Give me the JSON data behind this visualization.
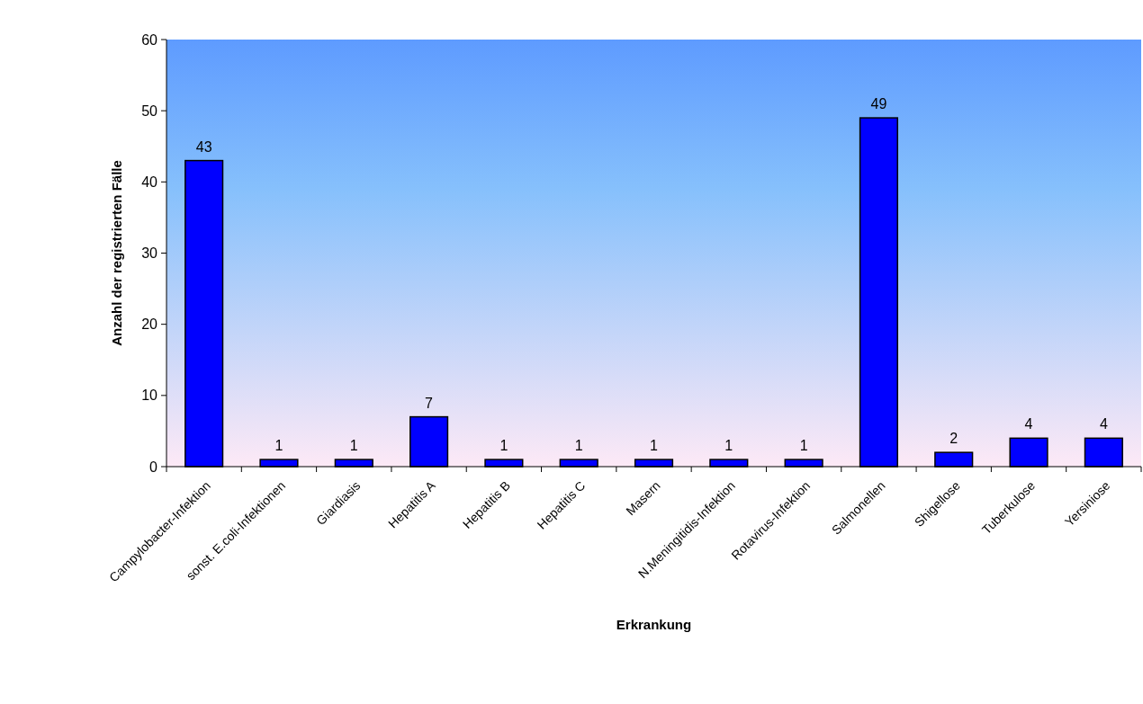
{
  "chart_data": {
    "type": "bar",
    "xlabel": "Erkrankung",
    "ylabel": "Anzahl der registrierten Fälle",
    "categories": [
      "Campylobacter-Infektion",
      "sonst. E.coli-Infektionen",
      "Giardiasis",
      "Hepatitis A",
      "Hepatitis B",
      "Hepatitis C",
      "Masern",
      "N.Meningitidis-Infektion",
      "Rotavirus-Infektion",
      "Salmonellen",
      "Shigellose",
      "Tuberkulose",
      "Yersiniose"
    ],
    "values": [
      43,
      1,
      1,
      7,
      1,
      1,
      1,
      1,
      1,
      49,
      2,
      4,
      4
    ],
    "color": "#0000ff",
    "ylim": [
      0,
      60
    ],
    "yticks": [
      0,
      10,
      20,
      30,
      40,
      50,
      60
    ],
    "data_labels": true,
    "grid": false
  }
}
